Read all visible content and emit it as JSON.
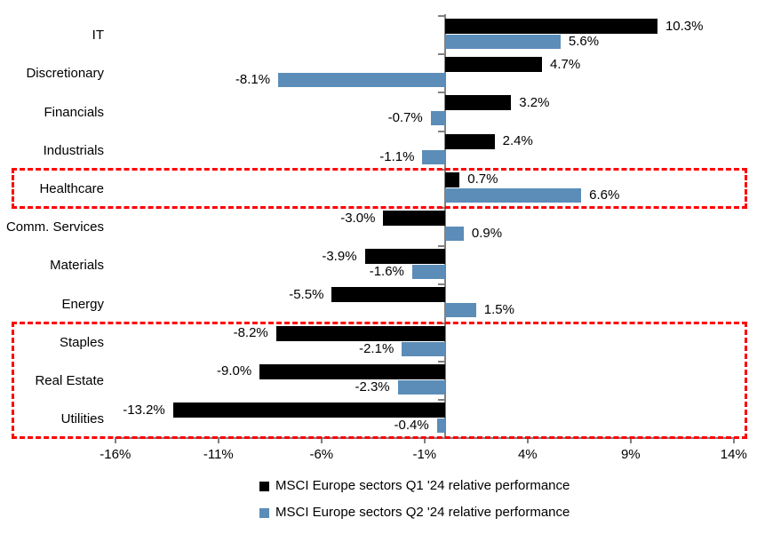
{
  "chart_data": {
    "type": "bar",
    "orientation": "horizontal",
    "title": "",
    "categories": [
      "IT",
      "Discretionary",
      "Financials",
      "Industrials",
      "Healthcare",
      "Comm. Services",
      "Materials",
      "Energy",
      "Staples",
      "Real Estate",
      "Utilities"
    ],
    "series": [
      {
        "name": "MSCI Europe sectors Q1 '24 relative performance",
        "color": "#000000",
        "values": [
          10.3,
          4.7,
          3.2,
          2.4,
          0.7,
          -3.0,
          -3.9,
          -5.5,
          -8.2,
          -9.0,
          -13.2
        ]
      },
      {
        "name": "MSCI Europe sectors Q2 '24 relative performance",
        "color": "#5B8DB8",
        "values": [
          5.6,
          -8.1,
          -0.7,
          -1.1,
          6.6,
          0.9,
          -1.6,
          1.5,
          -2.1,
          -2.3,
          -0.4
        ]
      }
    ],
    "value_labels": {
      "q1": [
        "10.3%",
        "4.7%",
        "3.2%",
        "2.4%",
        "0.7%",
        "-3.0%",
        "-3.9%",
        "-5.5%",
        "-8.2%",
        "-9.0%",
        "-13.2%"
      ],
      "q2": [
        "5.6%",
        "-8.1%",
        "-0.7%",
        "-1.1%",
        "6.6%",
        "0.9%",
        "-1.6%",
        "1.5%",
        "-2.1%",
        "-2.3%",
        "-0.4%"
      ]
    },
    "x_axis": {
      "tick_labels": [
        "-16%",
        "-11%",
        "-6%",
        "-1%",
        "4%",
        "9%",
        "14%"
      ],
      "tick_values": [
        -16,
        -11,
        -6,
        -1,
        4,
        9,
        14
      ],
      "min": -16,
      "max": 14,
      "grid": false
    },
    "legend_position": "bottom",
    "highlights": [
      {
        "style": "red-dashed-box",
        "sectors": [
          "Healthcare"
        ]
      },
      {
        "style": "red-dashed-box",
        "sectors": [
          "Staples",
          "Real Estate",
          "Utilities"
        ]
      }
    ],
    "colors": {
      "series_q1": "#000000",
      "series_q2": "#5B8DB8",
      "highlight_border": "#FF0000",
      "axis_line": "#808080",
      "label_text": "#000000",
      "background": "#FFFFFF"
    }
  }
}
